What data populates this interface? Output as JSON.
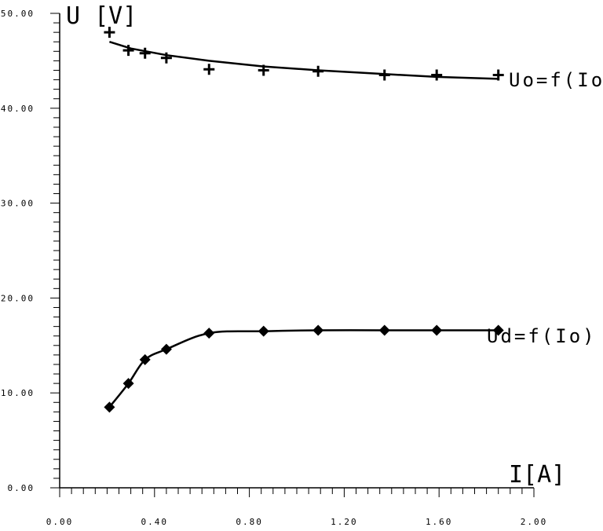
{
  "chart_data": {
    "type": "line",
    "xlabel": "I[A]",
    "ylabel": "U [V]",
    "xlim": [
      0,
      2.0
    ],
    "ylim": [
      0,
      50
    ],
    "xticks": [
      "0.00",
      "0.40",
      "0.80",
      "1.20",
      "1.60",
      "2.00"
    ],
    "yticks": [
      "0.00",
      "10.00",
      "20.00",
      "30.00",
      "40.00",
      "50.00"
    ],
    "grid": false,
    "series": [
      {
        "name": "Uo=f(Io)",
        "marker": "plus",
        "x": [
          0.21,
          0.29,
          0.36,
          0.45,
          0.63,
          0.86,
          1.09,
          1.37,
          1.59,
          1.85
        ],
        "y": [
          48.0,
          46.1,
          45.8,
          45.3,
          44.1,
          44.0,
          43.9,
          43.5,
          43.5,
          43.5
        ],
        "fit": [
          [
            0.21,
            47.0
          ],
          [
            0.3,
            46.3
          ],
          [
            0.45,
            45.6
          ],
          [
            0.63,
            45.0
          ],
          [
            0.86,
            44.4
          ],
          [
            1.09,
            44.0
          ],
          [
            1.37,
            43.6
          ],
          [
            1.59,
            43.3
          ],
          [
            1.85,
            43.1
          ]
        ]
      },
      {
        "name": "Ud=f(Io)",
        "marker": "diamond",
        "x": [
          0.21,
          0.29,
          0.36,
          0.45,
          0.63,
          0.86,
          1.09,
          1.37,
          1.59,
          1.85
        ],
        "y": [
          8.5,
          11.0,
          13.5,
          14.6,
          16.3,
          16.5,
          16.6,
          16.6,
          16.6,
          16.6
        ]
      }
    ]
  }
}
